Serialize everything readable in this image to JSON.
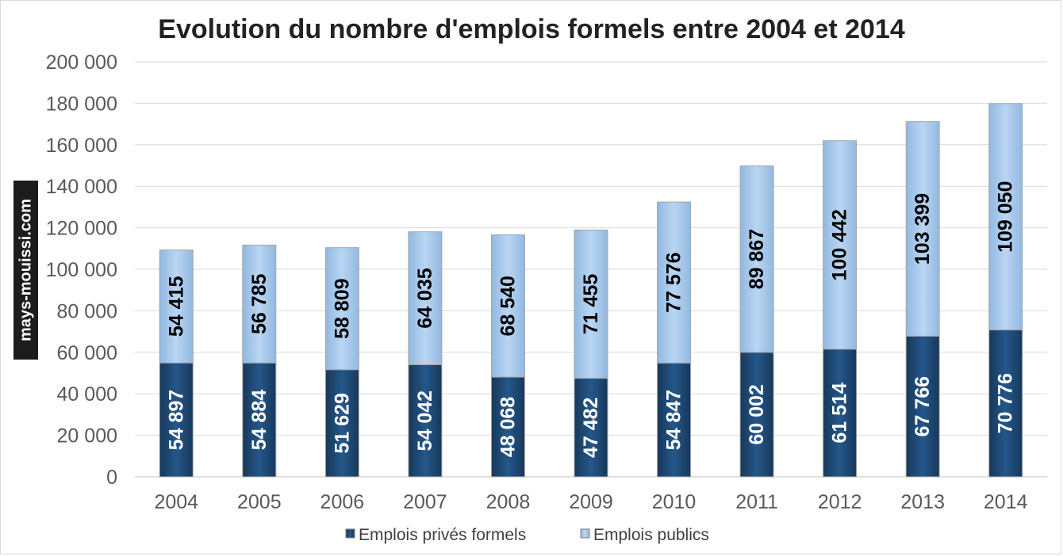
{
  "chart_data": {
    "type": "bar",
    "stacked": true,
    "title": "Evolution du nombre d'emplois formels entre 2004 et 2014",
    "categories": [
      "2004",
      "2005",
      "2006",
      "2007",
      "2008",
      "2009",
      "2010",
      "2011",
      "2012",
      "2013",
      "2014"
    ],
    "series": [
      {
        "name": "Emplois privés formels",
        "values": [
          54897,
          54884,
          51629,
          54042,
          48068,
          47482,
          54847,
          60002,
          61514,
          67766,
          70776
        ],
        "labels": [
          "54 897",
          "54 884",
          "51 629",
          "54 042",
          "48 068",
          "47 482",
          "54 847",
          "60 002",
          "61 514",
          "67 766",
          "70 776"
        ],
        "color": "#1f4e79"
      },
      {
        "name": "Emplois publics",
        "values": [
          54415,
          56785,
          58809,
          64035,
          68540,
          71455,
          77576,
          89867,
          100442,
          103399,
          109050
        ],
        "labels": [
          "54 415",
          "56 785",
          "58 809",
          "64 035",
          "68 540",
          "71 455",
          "77 576",
          "89 867",
          "100 442",
          "103 399",
          "109 050"
        ],
        "color": "#a9cdf0"
      }
    ],
    "ylim": [
      0,
      200000
    ],
    "yticks": [
      0,
      20000,
      40000,
      60000,
      80000,
      100000,
      120000,
      140000,
      160000,
      180000,
      200000
    ],
    "ytick_labels": [
      "0",
      "20 000",
      "40 000",
      "60 000",
      "80 000",
      "100 000",
      "120 000",
      "140 000",
      "160 000",
      "180 000",
      "200 000"
    ],
    "grid": true,
    "legend_position": "bottom"
  },
  "watermark": "mays-mouissi.com"
}
